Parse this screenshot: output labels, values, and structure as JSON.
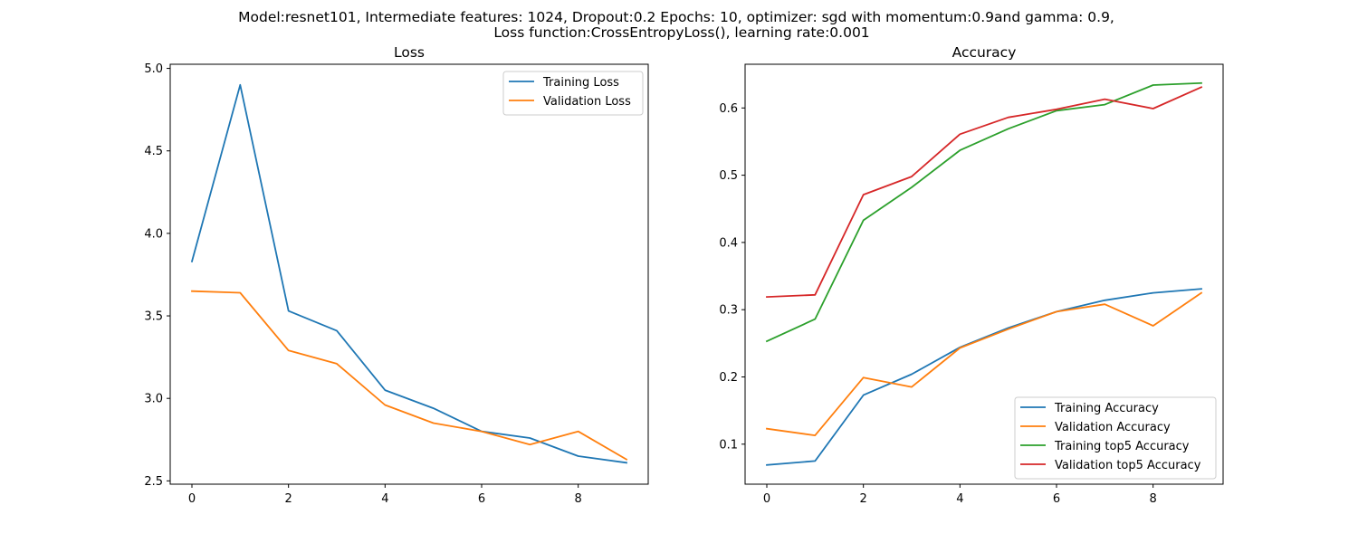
{
  "figure": {
    "suptitle_line1": "Model:resnet101, Intermediate features: 1024, Dropout:0.2 Epochs: 10, optimizer: sgd with momentum:0.9and gamma: 0.9,",
    "suptitle_line2": "Loss function:CrossEntropyLoss(), learning rate:0.001"
  },
  "chart_data": [
    {
      "type": "line",
      "title": "Loss",
      "xlabel": "",
      "ylabel": "",
      "xlim": [
        -0.45,
        9.45
      ],
      "ylim": [
        2.48,
        5.025
      ],
      "xticks": [
        0,
        2,
        4,
        6,
        8
      ],
      "yticks": [
        2.5,
        3.0,
        3.5,
        4.0,
        4.5,
        5.0
      ],
      "ytick_labels": [
        "2.5",
        "3.0",
        "3.5",
        "4.0",
        "4.5",
        "5.0"
      ],
      "legend_position": "top-right",
      "x": [
        0,
        1,
        2,
        3,
        4,
        5,
        6,
        7,
        8,
        9
      ],
      "series": [
        {
          "name": "Training Loss",
          "color": "#1f77b4",
          "values": [
            3.83,
            4.9,
            3.53,
            3.41,
            3.05,
            2.94,
            2.8,
            2.76,
            2.65,
            2.61
          ]
        },
        {
          "name": "Validation Loss",
          "color": "#ff7f0e",
          "values": [
            3.65,
            3.64,
            3.29,
            3.21,
            2.96,
            2.85,
            2.8,
            2.72,
            2.8,
            2.63
          ]
        }
      ]
    },
    {
      "type": "line",
      "title": "Accuracy",
      "xlabel": "",
      "ylabel": "",
      "xlim": [
        -0.45,
        9.45
      ],
      "ylim": [
        0.0405,
        0.665
      ],
      "xticks": [
        0,
        2,
        4,
        6,
        8
      ],
      "yticks": [
        0.1,
        0.2,
        0.3,
        0.4,
        0.5,
        0.6
      ],
      "ytick_labels": [
        "0.1",
        "0.2",
        "0.3",
        "0.4",
        "0.5",
        "0.6"
      ],
      "legend_position": "bottom-right",
      "x": [
        0,
        1,
        2,
        3,
        4,
        5,
        6,
        7,
        8,
        9
      ],
      "series": [
        {
          "name": "Training Accuracy",
          "color": "#1f77b4",
          "values": [
            0.069,
            0.075,
            0.173,
            0.204,
            0.244,
            0.273,
            0.297,
            0.314,
            0.325,
            0.331
          ]
        },
        {
          "name": "Validation Accuracy",
          "color": "#ff7f0e",
          "values": [
            0.123,
            0.113,
            0.199,
            0.185,
            0.243,
            0.271,
            0.297,
            0.308,
            0.276,
            0.325
          ]
        },
        {
          "name": "Training top5 Accuracy",
          "color": "#2ca02c",
          "values": [
            0.253,
            0.286,
            0.433,
            0.482,
            0.537,
            0.569,
            0.596,
            0.605,
            0.634,
            0.637
          ]
        },
        {
          "name": "Validation top5 Accuracy",
          "color": "#d62728",
          "values": [
            0.319,
            0.322,
            0.471,
            0.498,
            0.561,
            0.586,
            0.598,
            0.613,
            0.599,
            0.631
          ]
        }
      ]
    }
  ]
}
